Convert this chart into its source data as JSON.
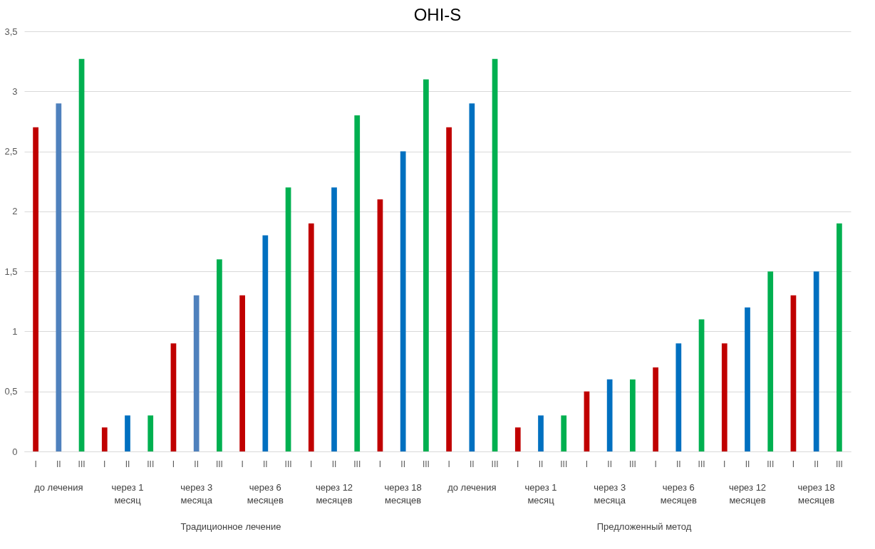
{
  "chart_data": {
    "type": "bar",
    "title": "OHI-S",
    "categories": [
      "I",
      "II",
      "III",
      "I",
      "II",
      "III",
      "I",
      "II",
      "III",
      "I",
      "II",
      "III",
      "I",
      "II",
      "III",
      "I",
      "II",
      "III",
      "I",
      "II",
      "III",
      "I",
      "II",
      "III",
      "I",
      "II",
      "III",
      "I",
      "II",
      "III",
      "I",
      "II",
      "III",
      "I",
      "II",
      "III"
    ],
    "values": [
      2.7,
      2.9,
      3.27,
      0.2,
      0.3,
      0.3,
      0.9,
      1.3,
      1.6,
      1.3,
      1.8,
      2.2,
      1.9,
      2.2,
      2.8,
      2.1,
      2.5,
      3.1,
      2.7,
      2.9,
      3.27,
      0.2,
      0.3,
      0.3,
      0.5,
      0.6,
      0.6,
      0.7,
      0.9,
      1.1,
      0.9,
      1.2,
      1.5,
      1.3,
      1.5,
      1.9
    ],
    "colors": [
      "#c00000",
      "#4f81bd",
      "#00b050",
      "#c00000",
      "#0070c0",
      "#00b050",
      "#c00000",
      "#4f81bd",
      "#00b050",
      "#c00000",
      "#0070c0",
      "#00b050",
      "#c00000",
      "#0070c0",
      "#00b050",
      "#c00000",
      "#0070c0",
      "#00b050",
      "#c00000",
      "#0070c0",
      "#00b050",
      "#c00000",
      "#0070c0",
      "#00b050",
      "#c00000",
      "#0070c0",
      "#00b050",
      "#c00000",
      "#0070c0",
      "#00b050",
      "#c00000",
      "#0070c0",
      "#00b050",
      "#c00000",
      "#0070c0",
      "#00b050"
    ],
    "ylim": [
      0,
      3.5
    ],
    "yticks": [
      0,
      {
        "value": 0.5,
        "label": "0,5"
      },
      1,
      {
        "value": 1.5,
        "label": "1,5"
      },
      2,
      {
        "value": 2.5,
        "label": "2,5"
      },
      3,
      {
        "value": 3.5,
        "label": "3,5"
      }
    ],
    "grid": "y",
    "annotations": [
      "до лечения",
      "через 1 месяц",
      "через 3 месяца",
      "через 6 месяцев",
      "через 12 месяцев",
      "через 18 месяцев",
      "до лечения",
      "через 1 месяц",
      "через 3 месяца",
      "через 6 месяцев",
      "через 12 месяцев",
      "через 18 месяцев",
      "Традиционное лечение",
      "Предложенный метод"
    ]
  }
}
